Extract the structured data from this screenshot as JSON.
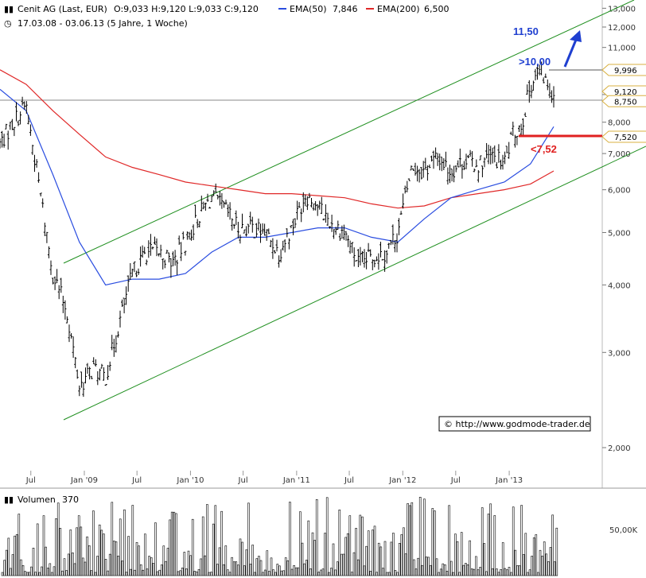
{
  "header": {
    "icon": "bar-chart-icon",
    "title": "Cenit AG (Last, EUR)",
    "ohlc": "O:9,033  H:9,120  L:9,033  C:9,120",
    "ema50_label": "EMA(50)",
    "ema50_value": "7,846",
    "ema200_label": "EMA(200)",
    "ema200_value": "6,500",
    "period_icon": "clock-icon",
    "period": "17.03.08 - 03.06.13 (5 Jahre, 1 Woche)"
  },
  "colors": {
    "price": "#000000",
    "ema50": "#2a4de0",
    "ema200": "#e02828",
    "channel": "#1f8f1f",
    "annotation_blue": "#1f3fd0",
    "annotation_red": "#e02020",
    "badge_border": "#d8b040",
    "grid": "#d8d8d8"
  },
  "annotations": {
    "target": "11,50",
    "resistance": ">10,00",
    "support": "<7,52"
  },
  "price_badges": [
    "9,996",
    "9,120",
    "8,750",
    "7,520"
  ],
  "watermark": "© http://www.godmode-trader.de",
  "chart_data": [
    {
      "type": "line",
      "title": "Cenit AG (Last, EUR)",
      "xlabel": "",
      "ylabel": "",
      "y_scale": "log",
      "ylim": [
        1.8,
        13.0
      ],
      "x_range": [
        "2008-03-17",
        "2013-06-03"
      ],
      "x_ticks": [
        "Jul",
        "Jan '09",
        "Jul",
        "Jan '10",
        "Jul",
        "Jan '11",
        "Jul",
        "Jan '12",
        "Jul",
        "Jan '13"
      ],
      "y_ticks": [
        "2,000",
        "3,000",
        "4,000",
        "5,000",
        "6,000",
        "7,000",
        "8,000",
        "9,000",
        "10,000",
        "11,000",
        "12,000",
        "13,000"
      ],
      "grid": false,
      "legend": "top",
      "series": [
        {
          "name": "Cenit AG (Last, EUR)",
          "x": [
            "2008-03-17",
            "2008-05-01",
            "2008-06-15",
            "2008-08-01",
            "2008-09-15",
            "2008-11-01",
            "2008-12-15",
            "2009-02-01",
            "2009-03-15",
            "2009-05-01",
            "2009-06-15",
            "2009-08-01",
            "2009-09-15",
            "2009-11-01",
            "2009-12-15",
            "2010-02-01",
            "2010-03-15",
            "2010-05-01",
            "2010-06-15",
            "2010-08-01",
            "2010-09-15",
            "2010-11-01",
            "2010-12-15",
            "2011-02-01",
            "2011-03-15",
            "2011-05-01",
            "2011-06-15",
            "2011-08-01",
            "2011-09-15",
            "2011-11-01",
            "2011-12-15",
            "2012-02-01",
            "2012-03-15",
            "2012-05-01",
            "2012-06-15",
            "2012-08-01",
            "2012-09-15",
            "2012-11-01",
            "2012-12-15",
            "2013-01-15",
            "2013-02-15",
            "2013-03-15",
            "2013-04-15",
            "2013-05-15",
            "2013-06-03"
          ],
          "values": [
            7.3,
            8.0,
            8.6,
            6.0,
            4.2,
            3.6,
            2.6,
            2.8,
            2.7,
            3.4,
            4.2,
            4.6,
            4.6,
            4.4,
            4.8,
            5.4,
            5.8,
            5.5,
            5.1,
            5.1,
            5.0,
            4.6,
            5.1,
            5.9,
            5.6,
            5.2,
            5.0,
            4.4,
            4.5,
            4.6,
            5.0,
            6.6,
            6.5,
            6.9,
            6.5,
            6.8,
            6.7,
            6.9,
            6.7,
            7.6,
            8.0,
            9.4,
            10.0,
            9.3,
            9.12
          ]
        },
        {
          "name": "EMA(50)",
          "x": [
            "2008-03-17",
            "2008-06-15",
            "2008-09-15",
            "2008-12-15",
            "2009-03-15",
            "2009-06-15",
            "2009-09-15",
            "2009-12-15",
            "2010-03-15",
            "2010-06-15",
            "2010-09-15",
            "2010-12-15",
            "2011-03-15",
            "2011-06-15",
            "2011-09-15",
            "2011-12-15",
            "2012-03-15",
            "2012-06-15",
            "2012-09-15",
            "2012-12-15",
            "2013-03-15",
            "2013-06-03"
          ],
          "values": [
            9.2,
            8.4,
            6.4,
            4.8,
            4.0,
            4.1,
            4.1,
            4.2,
            4.6,
            4.9,
            4.9,
            5.0,
            5.1,
            5.1,
            4.9,
            4.8,
            5.3,
            5.8,
            6.0,
            6.2,
            6.7,
            7.85
          ]
        },
        {
          "name": "EMA(200)",
          "x": [
            "2008-03-17",
            "2008-06-15",
            "2008-09-15",
            "2008-12-15",
            "2009-03-15",
            "2009-06-15",
            "2009-09-15",
            "2009-12-15",
            "2010-03-15",
            "2010-06-15",
            "2010-09-15",
            "2010-12-15",
            "2011-03-15",
            "2011-06-15",
            "2011-09-15",
            "2011-12-15",
            "2012-03-15",
            "2012-06-15",
            "2012-09-15",
            "2012-12-15",
            "2013-03-15",
            "2013-06-03"
          ],
          "values": [
            10.0,
            9.4,
            8.4,
            7.6,
            6.9,
            6.6,
            6.4,
            6.2,
            6.1,
            6.0,
            5.9,
            5.9,
            5.85,
            5.8,
            5.65,
            5.55,
            5.6,
            5.8,
            5.9,
            6.0,
            6.15,
            6.5
          ]
        }
      ]
    },
    {
      "type": "bar",
      "title": "Volumen",
      "value_label": "370",
      "y_ticks": [
        "50,00K"
      ],
      "note": "weekly volume"
    }
  ]
}
